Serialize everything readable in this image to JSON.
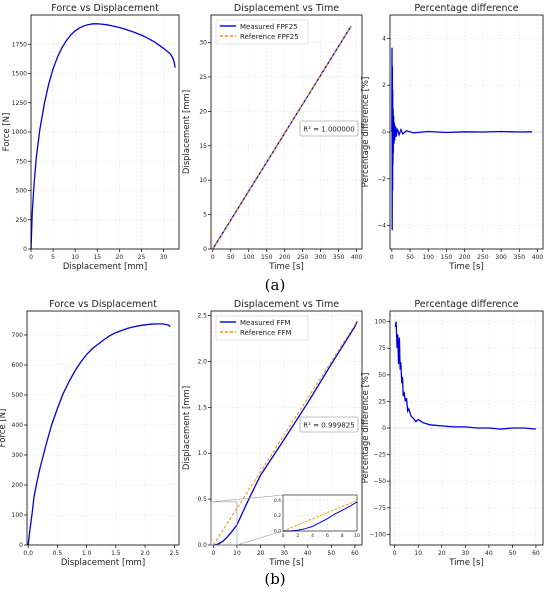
{
  "captions": [
    "(a)",
    "(b)"
  ],
  "chart_data": [
    {
      "type": "line",
      "panel": "a",
      "title": "Force vs Displacement",
      "xlabel": "Displacement [mm]",
      "ylabel": "Force [N]",
      "xlim": [
        0,
        33.5
      ],
      "ylim": [
        0,
        2000
      ],
      "xticks": [
        "0",
        "5",
        "10",
        "15",
        "20",
        "25",
        "30"
      ],
      "yticks": [
        "0",
        "250",
        "500",
        "750",
        "1000",
        "1250",
        "1500",
        "1750"
      ],
      "grid": true,
      "series": [
        {
          "name": "",
          "color": "#0000dd",
          "x": [
            0,
            0.3,
            0.7,
            1.2,
            2,
            3,
            4,
            5,
            6,
            7,
            8,
            9,
            10,
            11,
            12,
            13,
            14,
            15,
            16,
            17,
            18,
            19,
            20,
            21,
            22,
            23,
            24,
            25,
            26,
            27,
            28,
            29,
            30,
            31,
            31.5,
            32,
            32.3,
            32.5,
            32.6
          ],
          "y": [
            0,
            320,
            560,
            780,
            1020,
            1240,
            1410,
            1540,
            1640,
            1720,
            1780,
            1830,
            1865,
            1890,
            1908,
            1918,
            1925,
            1925,
            1922,
            1917,
            1910,
            1902,
            1893,
            1882,
            1870,
            1857,
            1843,
            1828,
            1810,
            1790,
            1768,
            1742,
            1715,
            1685,
            1668,
            1640,
            1610,
            1580,
            1550
          ]
        }
      ]
    },
    {
      "type": "line",
      "panel": "a",
      "title": "Displacement vs Time",
      "xlabel": "Time [s]",
      "ylabel": "Displacement [mm]",
      "xlim": [
        -5,
        415
      ],
      "ylim": [
        0,
        34
      ],
      "xticks": [
        "0",
        "50",
        "100",
        "150",
        "200",
        "250",
        "300",
        "350",
        "400"
      ],
      "yticks": [
        "0",
        "5",
        "10",
        "15",
        "20",
        "25",
        "30"
      ],
      "grid": true,
      "legend": "top-left",
      "annotation": "R² = 1.000000",
      "series": [
        {
          "name": "Measured FPF25",
          "color": "#0000dd",
          "style": "solid",
          "x": [
            0,
            385
          ],
          "y": [
            0,
            32.4
          ]
        },
        {
          "name": "Reference FPF25",
          "color": "#ff8c00",
          "style": "dashed",
          "x": [
            0,
            385
          ],
          "y": [
            0,
            32.4
          ]
        }
      ]
    },
    {
      "type": "line",
      "panel": "a",
      "title": "Percentage difference",
      "xlabel": "Time [s]",
      "ylabel": "Percentage difference [%]",
      "xlim": [
        -5,
        415
      ],
      "ylim": [
        -5,
        5
      ],
      "xticks": [
        "0",
        "50",
        "100",
        "150",
        "200",
        "250",
        "300",
        "350",
        "400"
      ],
      "yticks": [
        "−4",
        "−2",
        "0",
        "2",
        "4"
      ],
      "grid": true,
      "series": [
        {
          "name": "",
          "color": "#0000dd",
          "x": [
            0,
            0.5,
            1,
            1.5,
            2,
            2.5,
            3,
            3.5,
            4,
            5,
            6,
            7,
            8,
            10,
            12,
            15,
            20,
            25,
            30,
            40,
            60,
            100,
            150,
            200,
            250,
            300,
            350,
            385
          ],
          "y": [
            0,
            3.6,
            -4.2,
            2.8,
            -2.5,
            1.8,
            -1.4,
            1.0,
            -0.9,
            0.7,
            -0.5,
            0.4,
            -0.35,
            0.25,
            -0.2,
            0.15,
            -0.12,
            0.1,
            -0.08,
            0.05,
            -0.04,
            0.02,
            -0.02,
            0.01,
            0.0,
            0.02,
            0.0,
            0.01
          ]
        }
      ]
    },
    {
      "type": "line",
      "panel": "b",
      "title": "Force vs Displacement",
      "xlabel": "Displacement [mm]",
      "ylabel": "Force [N]",
      "xlim": [
        -0.02,
        2.58
      ],
      "ylim": [
        0,
        780
      ],
      "xticks": [
        "0.0",
        "0.5",
        "1.0",
        "1.5",
        "2.0",
        "2.5"
      ],
      "yticks": [
        "0",
        "100",
        "200",
        "300",
        "400",
        "500",
        "600",
        "700"
      ],
      "grid": true,
      "series": [
        {
          "name": "",
          "color": "#0000dd",
          "x": [
            0,
            0.03,
            0.07,
            0.1,
            0.15,
            0.2,
            0.3,
            0.4,
            0.5,
            0.6,
            0.7,
            0.8,
            0.9,
            1.0,
            1.1,
            1.2,
            1.3,
            1.4,
            1.5,
            1.6,
            1.7,
            1.8,
            1.9,
            2.0,
            2.1,
            2.2,
            2.3,
            2.35,
            2.4,
            2.43
          ],
          "y": [
            0,
            50,
            110,
            160,
            210,
            255,
            330,
            400,
            455,
            505,
            545,
            580,
            610,
            635,
            655,
            670,
            685,
            698,
            708,
            715,
            722,
            727,
            731,
            734,
            736,
            737,
            737,
            735,
            733,
            728
          ]
        }
      ]
    },
    {
      "type": "line",
      "panel": "b",
      "title": "Displacement vs Time",
      "xlabel": "Time [s]",
      "ylabel": "Displacement [mm]",
      "xlim": [
        -1,
        63
      ],
      "ylim": [
        0,
        2.55
      ],
      "xticks": [
        "0",
        "10",
        "20",
        "30",
        "40",
        "50",
        "60"
      ],
      "yticks": [
        "0.0",
        "0.5",
        "1.0",
        "1.5",
        "2.0",
        "2.5"
      ],
      "grid": true,
      "legend": "top-left",
      "annotation": "R² = 0.999825",
      "series": [
        {
          "name": "Measured FFM",
          "color": "#0000dd",
          "style": "solid",
          "x": [
            0,
            2,
            4,
            6,
            8,
            10,
            15,
            20,
            30,
            40,
            50,
            60,
            61
          ],
          "y": [
            0,
            0.01,
            0.04,
            0.09,
            0.15,
            0.22,
            0.5,
            0.76,
            1.15,
            1.55,
            1.97,
            2.38,
            2.44
          ]
        },
        {
          "name": "Reference FFM",
          "color": "#ff8c00",
          "style": "dashed",
          "x": [
            0,
            61
          ],
          "y": [
            0,
            2.44
          ]
        }
      ],
      "inset": {
        "xlim": [
          0,
          10
        ],
        "ylim": [
          0,
          0.47
        ],
        "xticks": [
          "0",
          "2",
          "4",
          "6",
          "8",
          "10"
        ],
        "yticks": [
          "0.0",
          "0.2",
          "0.4"
        ],
        "measured": {
          "x": [
            0,
            1,
            2,
            3,
            4,
            5,
            6,
            7,
            8,
            9,
            10
          ],
          "y": [
            0,
            0.0,
            0.01,
            0.03,
            0.06,
            0.11,
            0.16,
            0.22,
            0.27,
            0.32,
            0.38
          ]
        },
        "reference": {
          "x": [
            0,
            10
          ],
          "y": [
            0,
            0.4
          ]
        }
      }
    },
    {
      "type": "line",
      "panel": "b",
      "title": "Percentage difference",
      "xlabel": "Time [s]",
      "ylabel": "Percentage difference [%]",
      "xlim": [
        -2,
        63
      ],
      "ylim": [
        -110,
        110
      ],
      "xticks": [
        "0",
        "10",
        "20",
        "30",
        "40",
        "50",
        "60"
      ],
      "yticks": [
        "−100",
        "−75",
        "−50",
        "−25",
        "0",
        "25",
        "50",
        "75",
        "100"
      ],
      "grid": true,
      "series": [
        {
          "name": "",
          "color": "#0000dd",
          "x": [
            0.3,
            0.6,
            1,
            1.3,
            1.6,
            2,
            2.3,
            2.6,
            3,
            3.3,
            3.6,
            4,
            4.5,
            5,
            5.5,
            6,
            7,
            8,
            9,
            10,
            12,
            15,
            20,
            25,
            30,
            35,
            40,
            45,
            50,
            55,
            60
          ],
          "y": [
            95,
            100,
            75,
            88,
            60,
            85,
            55,
            62,
            42,
            48,
            30,
            34,
            25,
            28,
            16,
            18,
            11,
            9,
            6,
            8,
            5,
            3,
            2,
            1,
            1,
            0,
            0,
            -1,
            0,
            0,
            -1
          ]
        }
      ]
    }
  ]
}
